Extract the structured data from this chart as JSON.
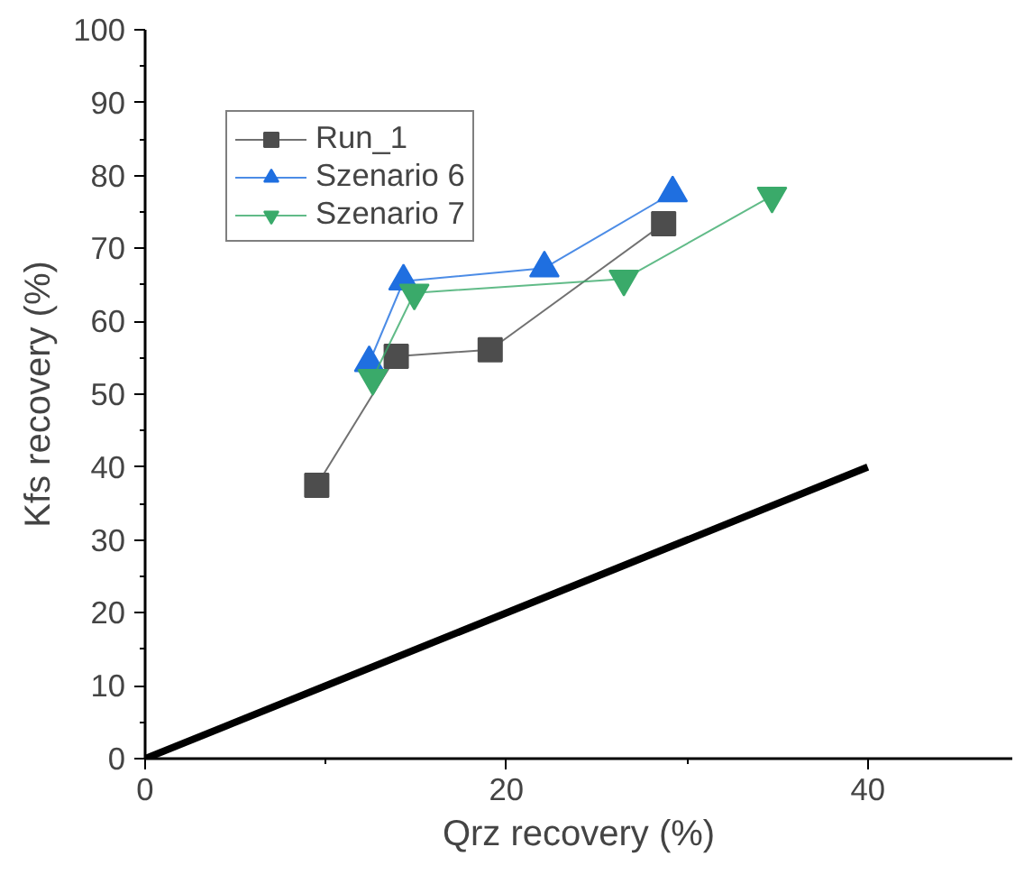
{
  "chart_data": {
    "type": "line",
    "xlabel": "Qrz recovery (%)",
    "ylabel": "Kfs recovery (%)",
    "xlim": [
      0,
      48
    ],
    "ylim": [
      0,
      100
    ],
    "xticks": [
      0,
      20,
      40
    ],
    "yticks": [
      0,
      10,
      20,
      30,
      40,
      50,
      60,
      70,
      80,
      90,
      100
    ],
    "grid": false,
    "legend": "top left",
    "line_style": "solid",
    "series": [
      {
        "name": "Run_1",
        "color": "#4d4d4d",
        "marker": "square",
        "x": [
          9.5,
          13.9,
          19.1,
          28.7
        ],
        "values": [
          37.5,
          55.2,
          56.1,
          73.4
        ]
      },
      {
        "name": "Szenario 6",
        "color": "#1f6fe0",
        "marker": "triangle",
        "x": [
          12.4,
          14.3,
          22.1,
          29.2
        ],
        "values": [
          54.3,
          65.5,
          67.3,
          77.6
        ]
      },
      {
        "name": "Szenario 7",
        "color": "#3aaa6a",
        "marker": "triangle",
        "x": [
          12.6,
          14.9,
          26.5,
          34.7
        ],
        "values": [
          52.2,
          63.9,
          65.8,
          77.2
        ]
      },
      {
        "color": "#000000",
        "marker": "none",
        "x": [
          0,
          40
        ],
        "values": [
          0,
          40
        ]
      }
    ]
  }
}
